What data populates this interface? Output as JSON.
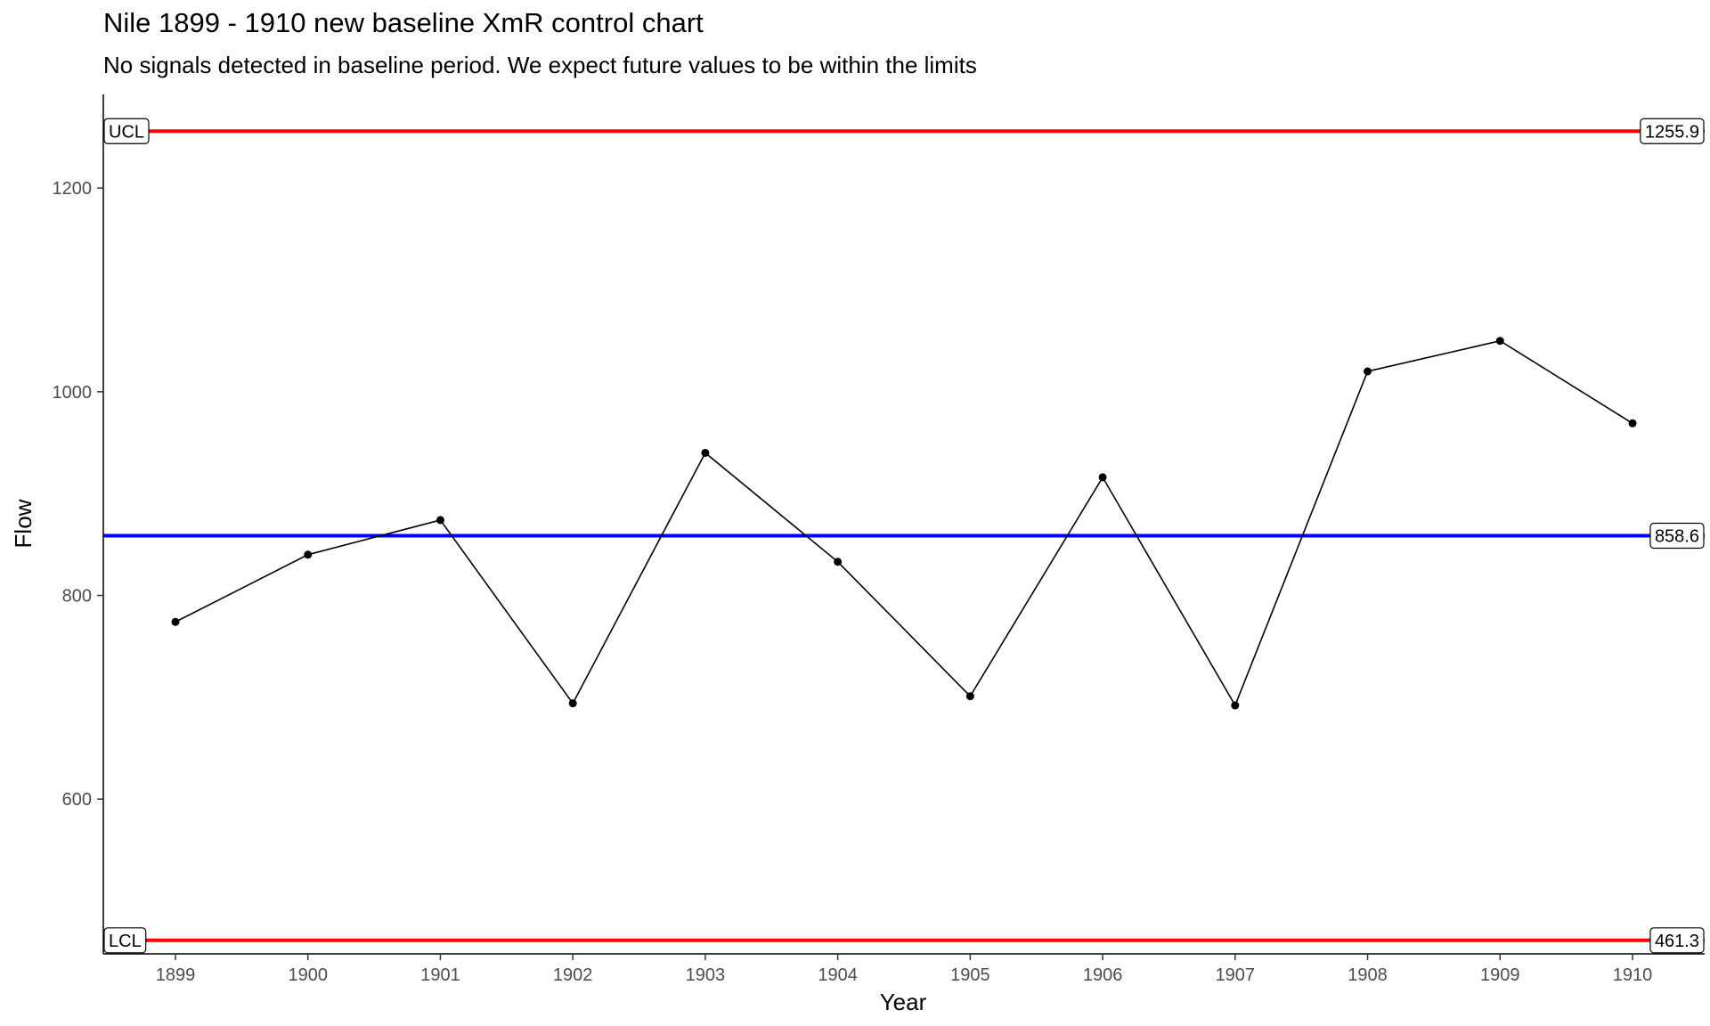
{
  "chart_data": {
    "type": "line",
    "title": "Nile 1899 - 1910 new baseline XmR control chart",
    "subtitle": "No signals detected in baseline period. We expect future values to be within the limits",
    "xlabel": "Year",
    "ylabel": "Flow",
    "ylim": [
      448,
      1292
    ],
    "y_ticks": [
      600,
      800,
      1000,
      1200
    ],
    "categories": [
      "1899",
      "1900",
      "1901",
      "1902",
      "1903",
      "1904",
      "1905",
      "1906",
      "1907",
      "1908",
      "1909",
      "1910"
    ],
    "values": [
      774,
      840,
      874,
      694,
      940,
      833,
      701,
      916,
      692,
      1020,
      1050,
      969
    ],
    "grid": false,
    "reference_lines": [
      {
        "key": "ucl",
        "label": "UCL",
        "value": 1255.9,
        "value_label": "1255.9",
        "color": "#ff0000"
      },
      {
        "key": "mean",
        "label": "",
        "value": 858.6,
        "value_label": "858.6",
        "color": "#0000ff"
      },
      {
        "key": "lcl",
        "label": "LCL",
        "value": 461.3,
        "value_label": "461.3",
        "color": "#ff0000"
      }
    ],
    "series_color": "#000000"
  }
}
